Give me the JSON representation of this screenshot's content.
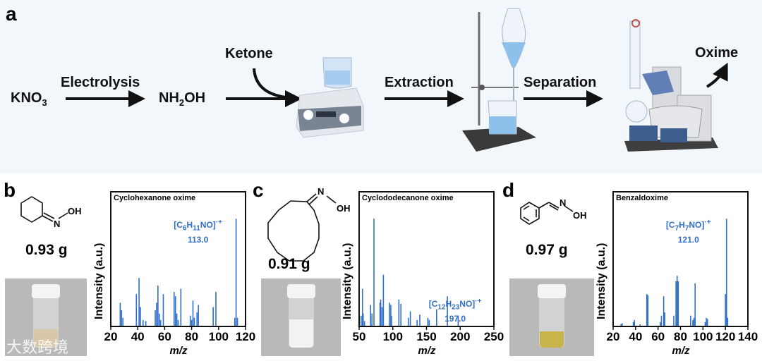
{
  "panel_a": {
    "label": "a",
    "reactant": "KNO",
    "reactant_sub": "3",
    "step1": "Electrolysis",
    "intermediate_pre": "NH",
    "intermediate_sub": "2",
    "intermediate_post": "OH",
    "reagent": "Ketone",
    "step2": "Extraction",
    "step3": "Separation",
    "product": "Oxime"
  },
  "panels": [
    {
      "label": "b",
      "mass": "0.93 g",
      "oh": "OH",
      "n": "N"
    },
    {
      "label": "c",
      "mass": "0.91 g",
      "oh": "OH",
      "n": "N"
    },
    {
      "label": "d",
      "mass": "0.97 g",
      "oh": "OH",
      "n": "N"
    }
  ],
  "watermark": "大数跨境",
  "chart_data": [
    {
      "type": "bar",
      "title": "Cyclohexanone oxime",
      "xlabel": "m/z",
      "ylabel": "Intensity (a.u.)",
      "xlim": [
        20,
        120
      ],
      "xticks": [
        "20",
        "40",
        "60",
        "80",
        "100",
        "120"
      ],
      "ylim": [
        0,
        125
      ],
      "annotation": {
        "formula": "[C6H11NO]·+",
        "value": "113.0",
        "x": 113
      },
      "x": [
        27,
        28,
        29,
        39,
        41,
        42,
        44,
        46,
        53,
        54,
        55,
        56,
        57,
        59,
        67,
        68,
        69,
        70,
        72,
        79,
        80,
        81,
        82,
        84,
        85,
        96,
        98,
        112,
        113,
        114
      ],
      "y": [
        22,
        15,
        8,
        30,
        45,
        18,
        6,
        5,
        15,
        22,
        38,
        12,
        6,
        30,
        32,
        28,
        12,
        6,
        35,
        10,
        6,
        24,
        8,
        13,
        20,
        18,
        32,
        8,
        100,
        8
      ]
    },
    {
      "type": "bar",
      "title": "Cyclododecanone oxime",
      "xlabel": "m/z",
      "ylabel": "Intensity (a.u.)",
      "xlim": [
        50,
        250
      ],
      "xticks": [
        "50",
        "100",
        "150",
        "200",
        "250"
      ],
      "ylim": [
        0,
        125
      ],
      "annotation": {
        "formula": "[C12H23NO]·+",
        "value": "197.0",
        "x": 197
      },
      "x": [
        53,
        55,
        56,
        58,
        67,
        69,
        72,
        81,
        82,
        84,
        86,
        95,
        97,
        98,
        109,
        112,
        123,
        126,
        136,
        140,
        152,
        154,
        165,
        181,
        197
      ],
      "y": [
        10,
        35,
        12,
        5,
        20,
        12,
        100,
        22,
        25,
        18,
        48,
        22,
        20,
        10,
        25,
        21,
        8,
        14,
        6,
        11,
        8,
        6,
        16,
        28,
        10
      ]
    },
    {
      "type": "bar",
      "title": "Benzaldoxime",
      "xlabel": "m/z",
      "ylabel": "Intensity (a.u.)",
      "xlim": [
        20,
        140
      ],
      "xticks": [
        "20",
        "40",
        "60",
        "80",
        "100",
        "120",
        "140"
      ],
      "ylim": [
        0,
        125
      ],
      "annotation": {
        "formula": "[C7H7NO]·+",
        "value": "121.0",
        "x": 121
      },
      "x": [
        27,
        28,
        38,
        39,
        44,
        50,
        51,
        62,
        63,
        65,
        66,
        74,
        76,
        77,
        78,
        89,
        91,
        92,
        93,
        102,
        103,
        104,
        120,
        121,
        122
      ],
      "y": [
        2,
        3,
        4,
        6,
        2,
        30,
        29,
        4,
        10,
        28,
        13,
        10,
        42,
        47,
        42,
        10,
        6,
        8,
        40,
        4,
        8,
        7,
        30,
        100,
        8
      ]
    }
  ],
  "colors": {
    "bar": "#2f6fc9",
    "panel_bg": "#f2f7fc",
    "arrow": "#111111"
  }
}
